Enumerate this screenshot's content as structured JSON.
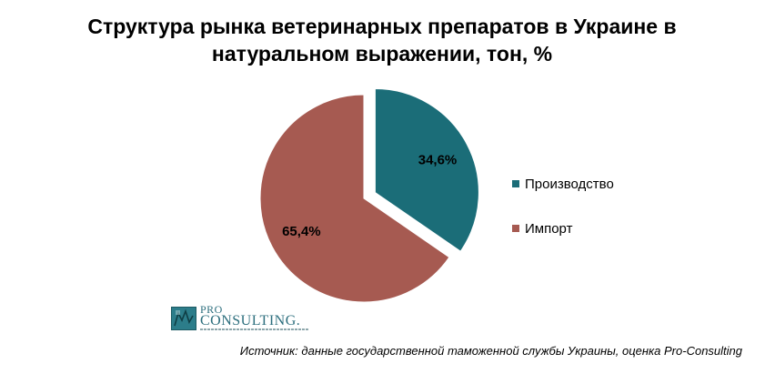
{
  "chart_data": {
    "type": "pie",
    "title_line1": "Структура  рынка ветеринарных препаратов в Украине в",
    "title_line2": "натуральном выражении, тон, %",
    "slices": [
      {
        "name": "Производство",
        "value": 34.6,
        "label": "34,6%",
        "color": "#1b6d78",
        "exploded": true
      },
      {
        "name": "Импорт",
        "value": 65.4,
        "label": "65,4%",
        "color": "#a65a51",
        "exploded": false
      }
    ],
    "legend_position": "right"
  },
  "logo": {
    "line1": "PRO",
    "line2": "CONSULTING."
  },
  "source": "Источник: данные государственной таможенной службы Украины, оценка Pro-Consulting"
}
